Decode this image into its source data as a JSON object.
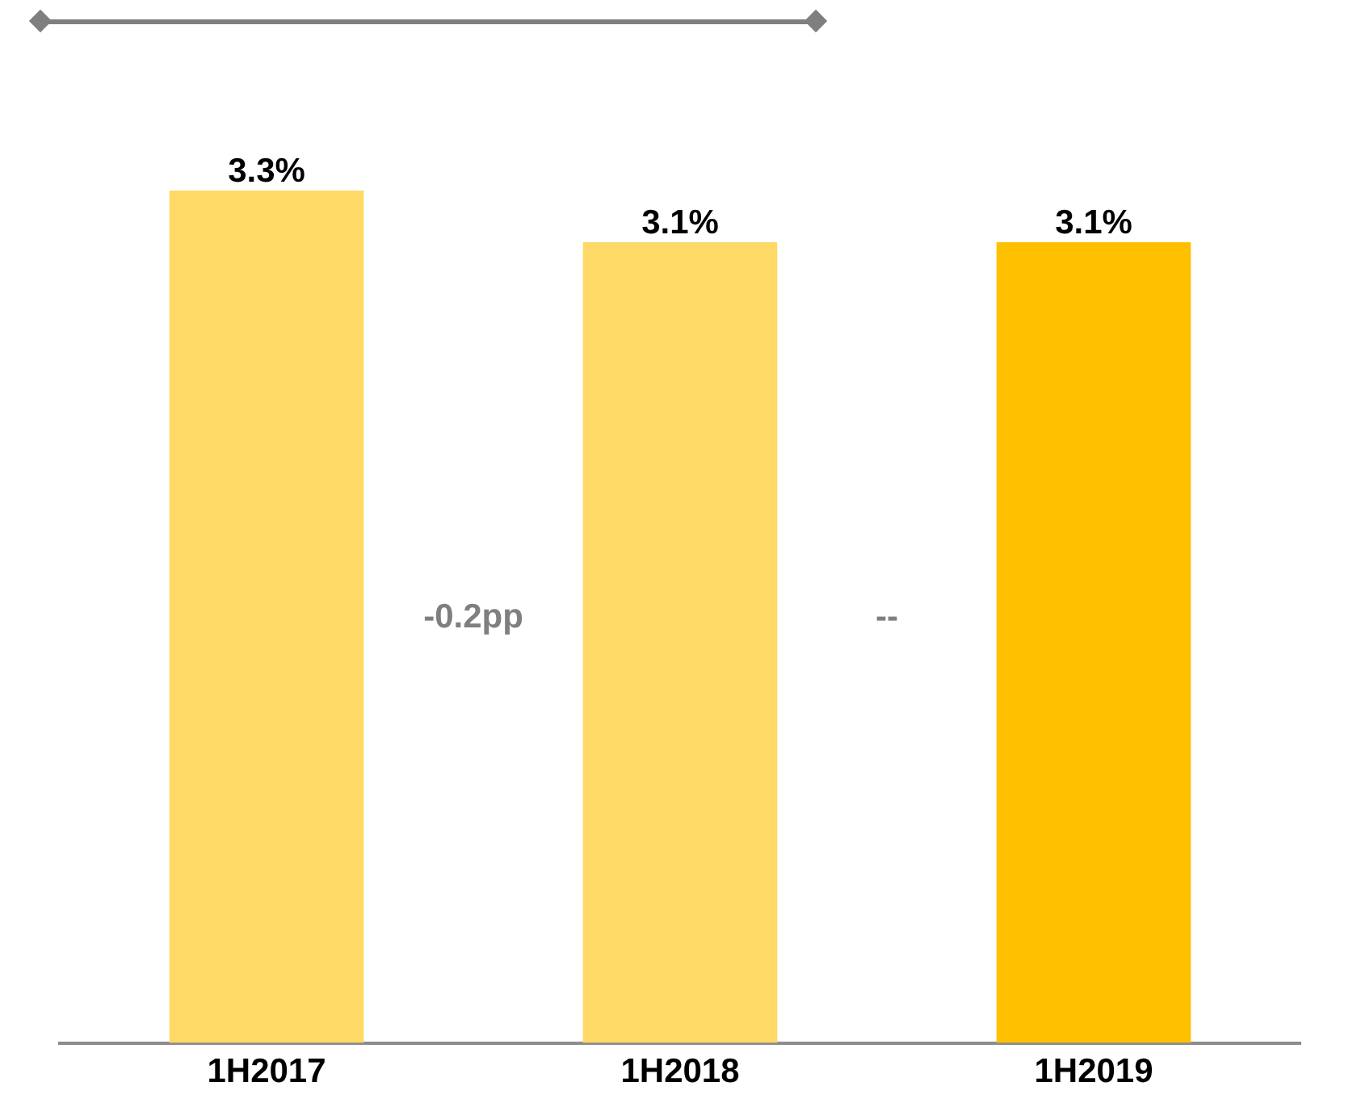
{
  "chart_data": {
    "type": "bar",
    "categories": [
      "1H2017",
      "1H2018",
      "1H2019"
    ],
    "values": [
      3.3,
      3.1,
      3.1
    ],
    "colors": [
      "#ffd966",
      "#ffd966",
      "#ffc000"
    ],
    "value_labels": [
      "3.3%",
      "3.1%",
      "3.1%"
    ],
    "annotations": [
      "-0.2pp",
      "--"
    ],
    "grid": false,
    "legend": false
  }
}
